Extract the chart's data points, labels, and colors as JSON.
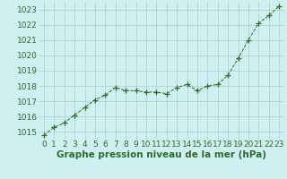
{
  "x": [
    0,
    1,
    2,
    3,
    4,
    5,
    6,
    7,
    8,
    9,
    10,
    11,
    12,
    13,
    14,
    15,
    16,
    17,
    18,
    19,
    20,
    21,
    22,
    23
  ],
  "y": [
    1014.8,
    1015.3,
    1015.6,
    1016.1,
    1016.6,
    1017.1,
    1017.4,
    1017.9,
    1017.7,
    1017.7,
    1017.6,
    1017.6,
    1017.5,
    1017.9,
    1018.1,
    1017.7,
    1018.0,
    1018.1,
    1018.7,
    1019.8,
    1021.0,
    1022.1,
    1022.6,
    1023.2
  ],
  "line_color": "#2d6b2d",
  "marker": "+",
  "marker_size": 4,
  "marker_color": "#2d6b2d",
  "background_color": "#cef0f0",
  "grid_color": "#aacece",
  "xlabel": "Graphe pression niveau de la mer (hPa)",
  "xlabel_color": "#2d6b2d",
  "ylabel_ticks": [
    1015,
    1016,
    1017,
    1018,
    1019,
    1020,
    1021,
    1022,
    1023
  ],
  "xtick_labels": [
    "0",
    "1",
    "2",
    "3",
    "4",
    "5",
    "6",
    "7",
    "8",
    "9",
    "10",
    "11",
    "12",
    "13",
    "14",
    "15",
    "16",
    "17",
    "18",
    "19",
    "20",
    "21",
    "22",
    "23"
  ],
  "ylim": [
    1014.5,
    1023.5
  ],
  "xlim": [
    -0.5,
    23.5
  ],
  "tick_color": "#2d6b2d",
  "tick_fontsize": 6.5,
  "xlabel_fontsize": 7.5,
  "line_width": 0.7
}
